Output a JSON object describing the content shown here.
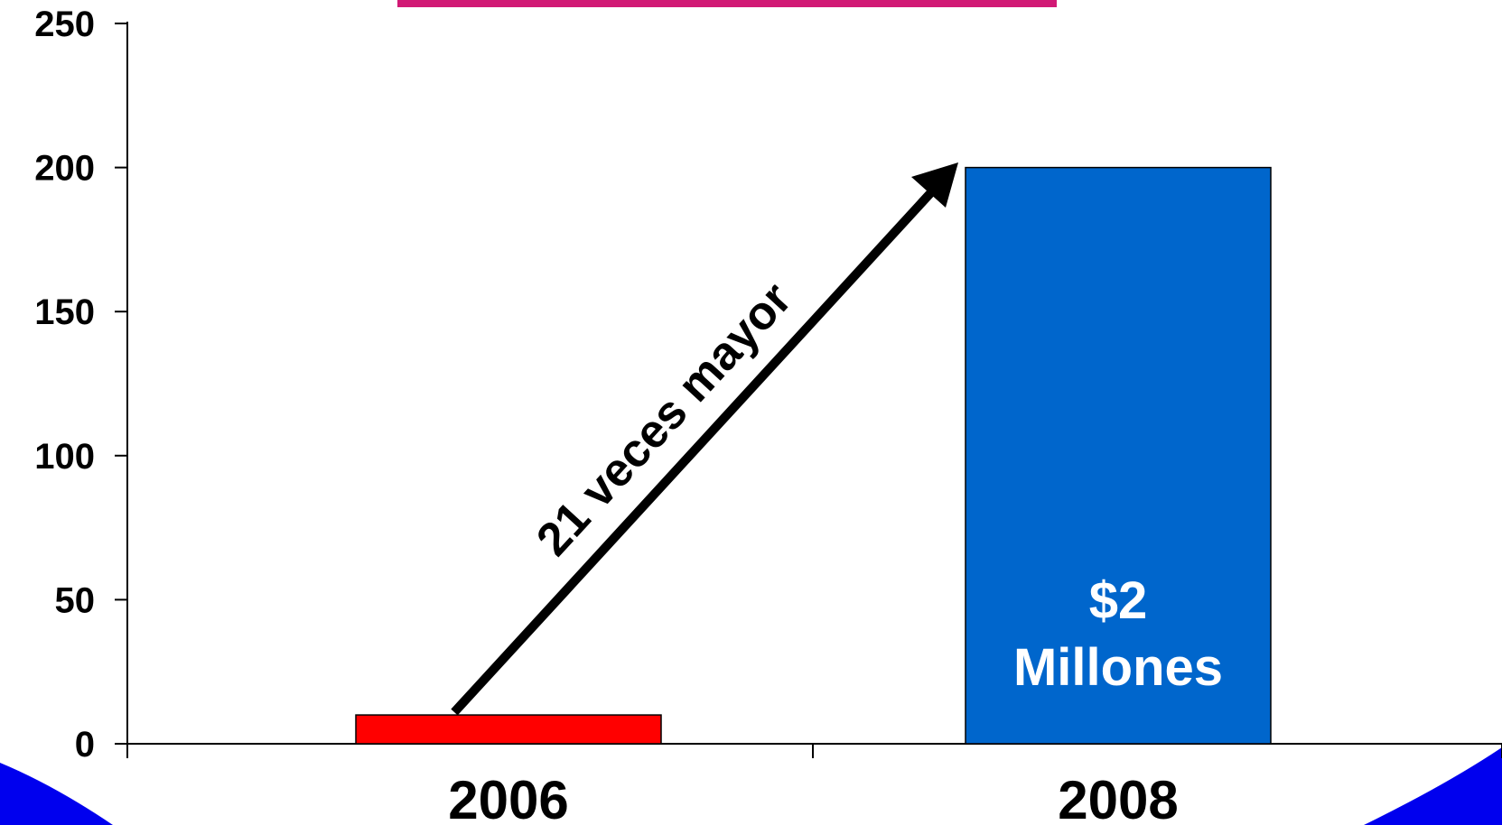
{
  "chart_data": {
    "type": "bar",
    "categories": [
      "2006",
      "2008"
    ],
    "values": [
      10,
      200
    ],
    "ylim": [
      0,
      250
    ],
    "yticks": [
      "0",
      "50",
      "100",
      "150",
      "200",
      "250"
    ],
    "title": "",
    "xlabel": "",
    "ylabel": "",
    "grid": false,
    "bar_colors": [
      "#ff0000",
      "#0066cc"
    ],
    "data_labels": [
      {
        "lines": [
          "",
          ""
        ]
      },
      {
        "lines": [
          "$2",
          "Millones"
        ]
      }
    ],
    "annotation": "21 veces mayor"
  },
  "colors": {
    "title": "#cc0066",
    "decoration": "#0000ee",
    "axis": "#000000"
  }
}
